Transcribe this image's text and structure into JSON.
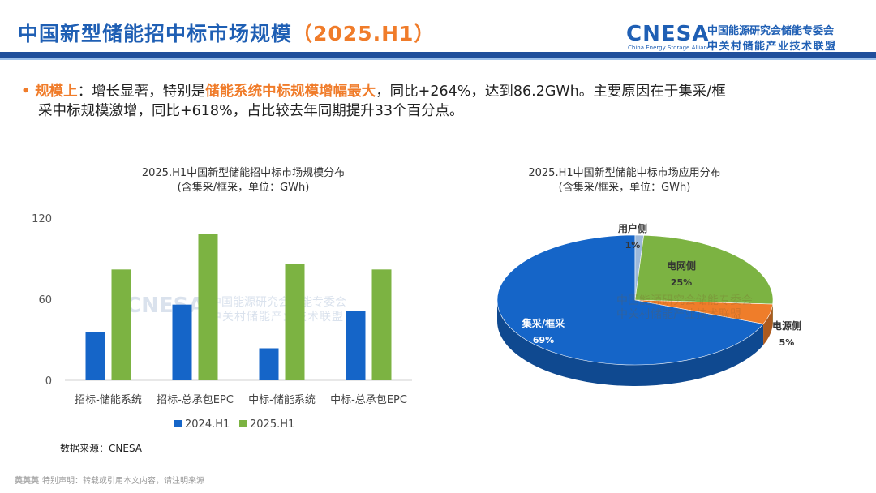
{
  "header": {
    "title": "中国新型储能招中标市场规模",
    "title_period": "（2025.H1）",
    "logo_text": "CNESA",
    "logo_sub": "China Energy Storage Alliance",
    "logo_cn_line1": "中国能源研究会储能专委会",
    "logo_cn_line2": "中关村储能产业技术联盟"
  },
  "summary": {
    "bullet": "•",
    "label": "规模上",
    "sep": "：增长显著，特别是",
    "highlight": "储能系统中标规模增幅最大",
    "rest1": "，同比+264%，达到86.2GWh。主要原因在于集采/框",
    "rest2": "采中标规模激增，同比+618%，占比较去年同期提升33个百分点。"
  },
  "watermark": {
    "logo": "CNESA",
    "sub": "China Energy Storage Alliance",
    "cn1": "中国能源研究会储能专委会",
    "cn2": "中关村储能产业技术联盟"
  },
  "chart_data": [
    {
      "type": "bar",
      "title": "2025.H1中国新型储能招中标市场规模分布",
      "subtitle": "(含集采/框采，单位：GWh)",
      "categories": [
        "招标-储能系统",
        "招标-总承包EPC",
        "中标-储能系统",
        "中标-总承包EPC"
      ],
      "series": [
        {
          "name": "2024.H1",
          "color": "#1565c8",
          "values": [
            36,
            56,
            23.7,
            51
          ]
        },
        {
          "name": "2025.H1",
          "color": "#7cb342",
          "values": [
            82,
            108,
            86.2,
            82
          ]
        }
      ],
      "ylim": [
        0,
        120
      ],
      "yticks": [
        0,
        60,
        120
      ],
      "legend": "bottom"
    },
    {
      "type": "pie",
      "title": "2025.H1中国新型储能中标市场应用分布",
      "subtitle": "(含集采/框采，单位：GWh)",
      "slices": [
        {
          "label": "集采/框采",
          "value": 69,
          "pct": "69%",
          "color": "#1565c8"
        },
        {
          "label": "用户侧",
          "value": 1,
          "pct": "1%",
          "color": "#9db8d9"
        },
        {
          "label": "电网侧",
          "value": 25,
          "pct": "25%",
          "color": "#7cb342"
        },
        {
          "label": "电源侧",
          "value": 5,
          "pct": "5%",
          "color": "#ef7d2a"
        }
      ]
    }
  ],
  "source": "数据来源：CNESA",
  "footer": {
    "tag": "英英英",
    "text": "特别声明：转载或引用本文内容，请注明来源"
  }
}
